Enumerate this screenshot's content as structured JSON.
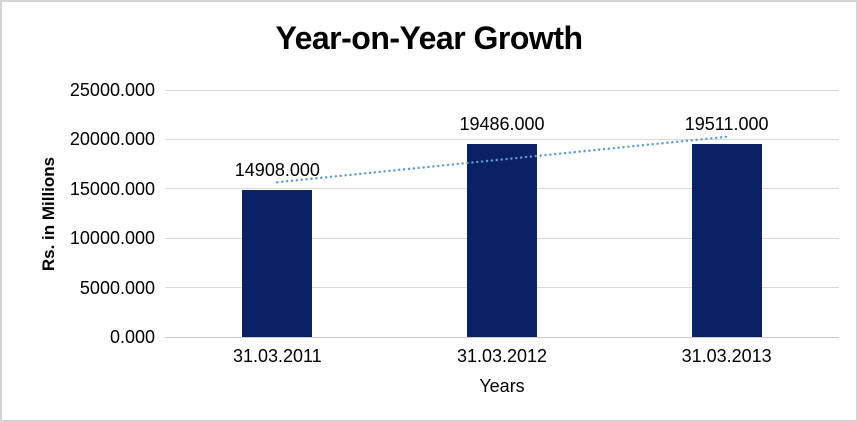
{
  "chart_data": {
    "type": "bar",
    "title": "Year-on-Year Growth",
    "xlabel": "Years",
    "ylabel": "Rs. in Millions",
    "categories": [
      "31.03.2011",
      "31.03.2012",
      "31.03.2013"
    ],
    "values": [
      14908,
      19486,
      19511
    ],
    "value_labels": [
      "14908.000",
      "19486.000",
      "19511.000"
    ],
    "ylim": [
      0,
      25000
    ],
    "yticks": [
      0,
      5000,
      10000,
      15000,
      20000,
      25000
    ],
    "ytick_labels": [
      "0.000",
      "5000.000",
      "10000.000",
      "15000.000",
      "20000.000",
      "25000.000"
    ],
    "grid": "horizontal",
    "legend": "none",
    "bar_color": "#0A2264",
    "trendline": {
      "type": "linear",
      "style": "dotted",
      "color": "#5B9BD5",
      "start_value": 15667,
      "end_value": 20270
    }
  },
  "colors": {
    "gridline": "#D9D9D9",
    "axis_line": "#C9C9C9",
    "text": "#000000",
    "background": "#FFFFFF",
    "border": "#D4D4D4"
  }
}
